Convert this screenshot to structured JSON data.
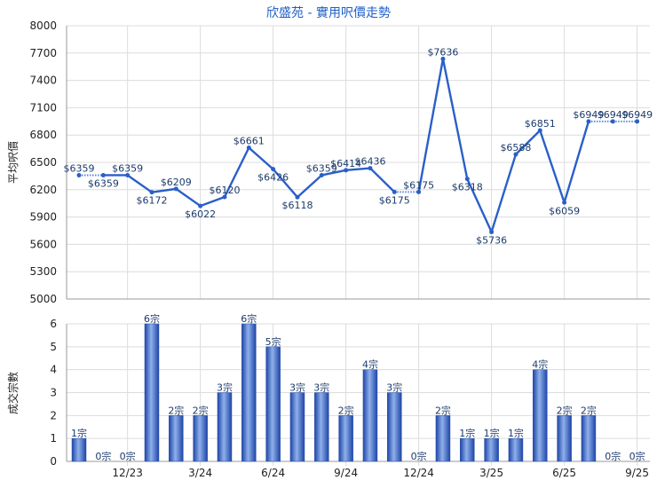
{
  "chart_data": [
    {
      "type": "line",
      "title": "欣盛苑 - 實用呎價走勢",
      "ylabel": "平均呎價",
      "ylim": [
        5000,
        8000
      ],
      "yticks": [
        5000,
        5300,
        5600,
        5900,
        6200,
        6500,
        6800,
        7100,
        7400,
        7700,
        8000
      ],
      "x": [
        "10/23",
        "11/23",
        "12/23",
        "1/24",
        "2/24",
        "3/24",
        "4/24",
        "5/24",
        "6/24",
        "7/24",
        "8/24",
        "9/24",
        "10/24",
        "11/24",
        "12/24",
        "1/25",
        "2/25",
        "3/25",
        "4/25",
        "5/25",
        "6/25",
        "7/25",
        "8/25",
        "9/25"
      ],
      "values": [
        6359,
        6359,
        6359,
        6172,
        6209,
        6022,
        6120,
        6661,
        6426,
        6118,
        6359,
        6414,
        6436,
        6175,
        6175,
        7636,
        6318,
        5736,
        6588,
        6851,
        6059,
        6949,
        6949,
        6949
      ],
      "labels": [
        "$6359",
        "$6359",
        "$6359",
        "$6172",
        "$6209",
        "$6022",
        "$6120",
        "$6661",
        "$6426",
        "$6118",
        "$6359",
        "$6414",
        "$6436",
        "$6175",
        "$6175",
        "$7636",
        "$6318",
        "$5736",
        "$6588",
        "$6851",
        "$6059",
        "$6949",
        "$6949",
        "$6949"
      ],
      "estimated": [
        false,
        true,
        false,
        false,
        false,
        false,
        false,
        false,
        false,
        false,
        false,
        false,
        false,
        false,
        true,
        false,
        false,
        false,
        false,
        false,
        false,
        false,
        true,
        true
      ],
      "grid": true,
      "color": "#2a5fc9"
    },
    {
      "type": "bar",
      "ylabel": "成交宗數",
      "ylim": [
        0,
        6
      ],
      "yticks": [
        0,
        1,
        2,
        3,
        4,
        5,
        6
      ],
      "values": [
        1,
        0,
        0,
        6,
        2,
        2,
        3,
        6,
        5,
        3,
        3,
        2,
        4,
        3,
        0,
        2,
        1,
        1,
        1,
        4,
        2,
        2,
        0,
        0
      ],
      "labels": [
        "1宗",
        "0宗",
        "0宗",
        "6宗",
        "2宗",
        "2宗",
        "3宗",
        "6宗",
        "5宗",
        "3宗",
        "3宗",
        "2宗",
        "4宗",
        "3宗",
        "0宗",
        "2宗",
        "1宗",
        "1宗",
        "1宗",
        "4宗",
        "2宗",
        "2宗",
        "0宗",
        "0宗"
      ],
      "xtick_labels": [
        "12/23",
        "3/24",
        "6/24",
        "9/24",
        "12/24",
        "3/25",
        "6/25",
        "9/25"
      ],
      "grid": true,
      "color": "#3a64c0"
    }
  ]
}
